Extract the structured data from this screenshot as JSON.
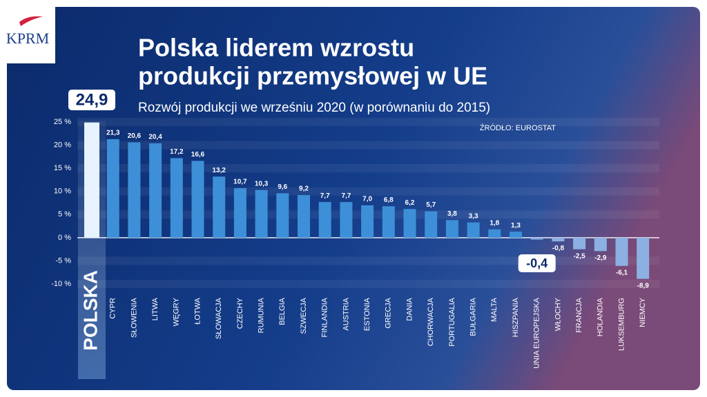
{
  "logo": "KPRM",
  "chart_data": {
    "type": "bar",
    "title": [
      "Polska liderem wzrostu",
      "produkcji przemysłowej w UE"
    ],
    "subtitle": "Rozwój produkcji we wrześniu 2020 (w porównaniu do 2015)",
    "source": "ŹRÓDŁO: EUROSTAT",
    "categories": [
      "POLSKA",
      "CYPR",
      "SŁOWENIA",
      "LITWA",
      "WĘGRY",
      "ŁOTWA",
      "SŁOWACJA",
      "CZECHY",
      "RUMUNIA",
      "BELGIA",
      "SZWECJA",
      "FINLANDIA",
      "AUSTRIA",
      "ESTONIA",
      "GRECJA",
      "DANIA",
      "CHORWACJA",
      "PORTUGALIA",
      "BUŁGARIA",
      "MALTA",
      "HISZPANIA",
      "UNIA EUROPEJSKA",
      "WŁOCHY",
      "FRANCJA",
      "HOLANDIA",
      "LUKSEMBURG",
      "NIEMCY"
    ],
    "values": [
      24.9,
      21.3,
      20.6,
      20.4,
      17.2,
      16.6,
      13.2,
      10.7,
      10.3,
      9.6,
      9.2,
      7.7,
      7.7,
      7.0,
      6.8,
      6.2,
      5.7,
      3.8,
      3.3,
      1.8,
      1.3,
      -0.4,
      -0.8,
      -2.5,
      -2.9,
      -6.1,
      -8.9
    ],
    "value_labels": [
      "24,9",
      "21,3",
      "20,6",
      "20,4",
      "17,2",
      "16,6",
      "13,2",
      "10,7",
      "10,3",
      "9,6",
      "9,2",
      "7,7",
      "7,7",
      "7,0",
      "6,8",
      "6,2",
      "5,7",
      "3,8",
      "3,3",
      "1,8",
      "1,3",
      "-0,4",
      "-0,8",
      "-2,5",
      "-2,9",
      "-6,1",
      "-8,9"
    ],
    "color": "#3d8fd8",
    "negative_color": "#8cb0e2",
    "ylim": [
      -10,
      25
    ],
    "yticks": [
      {
        "value": 25,
        "label": "25 %"
      },
      {
        "value": 20,
        "label": "20 %"
      },
      {
        "value": 15,
        "label": "15 %"
      },
      {
        "value": 10,
        "label": "10 %"
      },
      {
        "value": 5,
        "label": "5 %"
      },
      {
        "value": 0,
        "label": "0 %"
      },
      {
        "value": -5,
        "label": "-5 %"
      },
      {
        "value": -10,
        "label": "-10 %"
      }
    ],
    "grid": true
  }
}
